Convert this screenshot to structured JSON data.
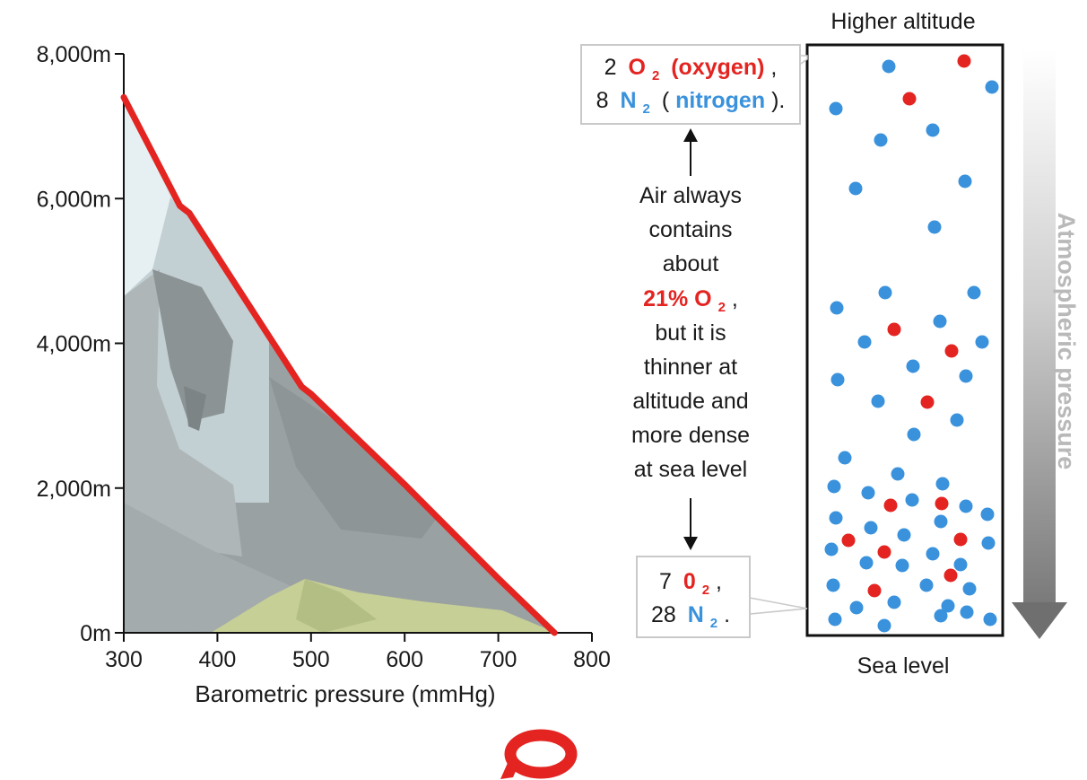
{
  "chart_data": {
    "type": "line",
    "xlabel": "Barometric pressure (mmHg)",
    "ylabel": "",
    "xlim": [
      300,
      800
    ],
    "ylim": [
      0,
      8000
    ],
    "x_ticks": [
      300,
      400,
      500,
      600,
      700,
      800
    ],
    "x_tick_labels": [
      "300",
      "400",
      "500",
      "600",
      "700",
      "800"
    ],
    "y_ticks": [
      0,
      2000,
      4000,
      6000,
      8000
    ],
    "y_tick_labels": [
      "0m",
      "2,000m",
      "4,000m",
      "6,000m",
      "8,000m"
    ],
    "grid": false,
    "series": [
      {
        "color": "#e32421",
        "points": [
          [
            300,
            7400
          ],
          [
            360,
            5900
          ],
          [
            370,
            5800
          ],
          [
            490,
            3400
          ],
          [
            500,
            3300
          ],
          [
            600,
            2050
          ],
          [
            700,
            750
          ],
          [
            760,
            0
          ]
        ]
      }
    ]
  },
  "diagram": {
    "top_label": "Higher altitude",
    "bottom_label": "Sea level",
    "arrow_label": "Atmospheric pressure",
    "top_box": {
      "line1": {
        "count": "2",
        "mol": "O",
        "sub": "2",
        "name": "(oxygen)",
        "punct": ","
      },
      "line2": {
        "count": "8",
        "mol": "N",
        "sub": "2",
        "open": "(",
        "name": "nitrogen",
        "close": ").",
        "punct": ""
      }
    },
    "bottom_box": {
      "line1": {
        "count": "7",
        "mol": "0",
        "sub": "2",
        "punct": ","
      },
      "line2": {
        "count": "28",
        "mol": "N",
        "sub": "2",
        "punct": "."
      }
    },
    "middle_text": {
      "lines_before": [
        "Air always",
        "contains",
        "about"
      ],
      "highlight": "21% O",
      "highlight_sub": "2",
      "highlight_punct": ",",
      "lines_after": [
        "but it is",
        "thinner at",
        "altitude and",
        "more dense",
        "at sea level"
      ]
    },
    "colors": {
      "oxygen": "#e32421",
      "nitrogen": "#3a92dc",
      "box_border": "#111111",
      "arrow_gray": "#8a8a8a"
    }
  },
  "logo": {
    "name": "speech-bubble-logo",
    "color": "#e32421"
  }
}
